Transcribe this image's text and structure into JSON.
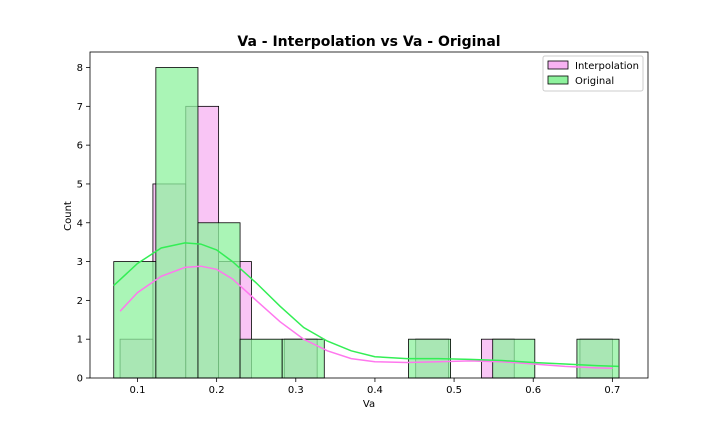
{
  "chart_data": {
    "type": "histogram",
    "title": "Va - Interpolation vs Va - Original",
    "xlabel": "Va",
    "ylabel": "Count",
    "xlim": [
      0.04,
      0.745
    ],
    "ylim": [
      0,
      8.4
    ],
    "xticks": [
      0.1,
      0.2,
      0.3,
      0.4,
      0.5,
      0.6,
      0.7
    ],
    "yticks": [
      0,
      1,
      2,
      3,
      4,
      5,
      6,
      7,
      8
    ],
    "grid": false,
    "legend_placement": "top-right",
    "series": [
      {
        "name": "Interpolation",
        "color": "#ff77ee",
        "fill": "#f7b2f2",
        "bins": [
          {
            "x0": 0.078,
            "x1": 0.1195,
            "count": 1
          },
          {
            "x0": 0.1195,
            "x1": 0.161,
            "count": 5
          },
          {
            "x0": 0.161,
            "x1": 0.2025,
            "count": 7
          },
          {
            "x0": 0.2025,
            "x1": 0.244,
            "count": 3
          },
          {
            "x0": 0.244,
            "x1": 0.2855,
            "count": 0
          },
          {
            "x0": 0.2855,
            "x1": 0.327,
            "count": 1
          },
          {
            "x0": 0.327,
            "x1": 0.3685,
            "count": 0
          },
          {
            "x0": 0.3685,
            "x1": 0.41,
            "count": 0
          },
          {
            "x0": 0.41,
            "x1": 0.4515,
            "count": 0
          },
          {
            "x0": 0.4515,
            "x1": 0.493,
            "count": 1
          },
          {
            "x0": 0.493,
            "x1": 0.5345,
            "count": 0
          },
          {
            "x0": 0.5345,
            "x1": 0.576,
            "count": 1
          },
          {
            "x0": 0.576,
            "x1": 0.6175,
            "count": 0
          },
          {
            "x0": 0.6175,
            "x1": 0.659,
            "count": 0
          },
          {
            "x0": 0.659,
            "x1": 0.7,
            "count": 1
          }
        ],
        "kde": [
          [
            0.078,
            1.72
          ],
          [
            0.1,
            2.2
          ],
          [
            0.13,
            2.62
          ],
          [
            0.16,
            2.85
          ],
          [
            0.18,
            2.88
          ],
          [
            0.2,
            2.8
          ],
          [
            0.22,
            2.55
          ],
          [
            0.25,
            2.0
          ],
          [
            0.28,
            1.45
          ],
          [
            0.31,
            1.0
          ],
          [
            0.34,
            0.7
          ],
          [
            0.37,
            0.5
          ],
          [
            0.4,
            0.42
          ],
          [
            0.44,
            0.4
          ],
          [
            0.48,
            0.42
          ],
          [
            0.52,
            0.44
          ],
          [
            0.56,
            0.42
          ],
          [
            0.6,
            0.36
          ],
          [
            0.64,
            0.3
          ],
          [
            0.68,
            0.26
          ],
          [
            0.7,
            0.25
          ]
        ]
      },
      {
        "name": "Original",
        "color": "#33ee55",
        "fill": "#8ef29d",
        "bins": [
          {
            "x0": 0.07,
            "x1": 0.1232,
            "count": 3
          },
          {
            "x0": 0.1232,
            "x1": 0.1764,
            "count": 8
          },
          {
            "x0": 0.1764,
            "x1": 0.2296,
            "count": 4
          },
          {
            "x0": 0.2296,
            "x1": 0.2828,
            "count": 1
          },
          {
            "x0": 0.2828,
            "x1": 0.336,
            "count": 1
          },
          {
            "x0": 0.336,
            "x1": 0.3892,
            "count": 0
          },
          {
            "x0": 0.3892,
            "x1": 0.4424,
            "count": 0
          },
          {
            "x0": 0.4424,
            "x1": 0.4956,
            "count": 1
          },
          {
            "x0": 0.4956,
            "x1": 0.5488,
            "count": 0
          },
          {
            "x0": 0.5488,
            "x1": 0.602,
            "count": 1
          },
          {
            "x0": 0.602,
            "x1": 0.6552,
            "count": 0
          },
          {
            "x0": 0.6552,
            "x1": 0.7084,
            "count": 1
          }
        ],
        "kde": [
          [
            0.07,
            2.38
          ],
          [
            0.1,
            2.95
          ],
          [
            0.13,
            3.35
          ],
          [
            0.16,
            3.48
          ],
          [
            0.18,
            3.45
          ],
          [
            0.2,
            3.3
          ],
          [
            0.22,
            3.0
          ],
          [
            0.25,
            2.45
          ],
          [
            0.28,
            1.85
          ],
          [
            0.31,
            1.3
          ],
          [
            0.34,
            0.95
          ],
          [
            0.37,
            0.7
          ],
          [
            0.4,
            0.55
          ],
          [
            0.44,
            0.5
          ],
          [
            0.48,
            0.5
          ],
          [
            0.52,
            0.48
          ],
          [
            0.56,
            0.45
          ],
          [
            0.6,
            0.4
          ],
          [
            0.64,
            0.36
          ],
          [
            0.68,
            0.32
          ],
          [
            0.708,
            0.3
          ]
        ]
      }
    ]
  }
}
